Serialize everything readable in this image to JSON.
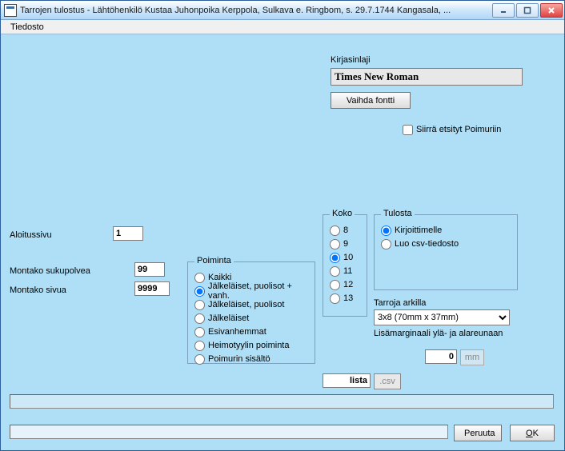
{
  "window": {
    "title": "Tarrojen tulostus - Lähtöhenkilö Kustaa Juhonpoika Kerppola, Sulkava e. Ringbom,  s. 29.7.1744 Kangasala, ..."
  },
  "menu": {
    "file": "Tiedosto"
  },
  "font": {
    "section_label": "Kirjasinlaji",
    "current": "Times New Roman",
    "change_btn": "Vaihda fontti"
  },
  "transfer_checkbox": "Siirrä etsityt Poimuriin",
  "left": {
    "start_page_label": "Aloitussivu",
    "start_page_value": "1",
    "generations_label": "Montako sukupolvea",
    "generations_value": "99",
    "pages_label": "Montako sivua",
    "pages_value": "9999"
  },
  "poiminta": {
    "legend": "Poiminta",
    "options": [
      "Kaikki",
      "Jälkeläiset, puolisot + vanh.",
      "Jälkeläiset, puolisot",
      "Jälkeläiset",
      "Esivanhemmat",
      "Heimotyylin poiminta",
      "Poimurin sisältö"
    ],
    "selected": 1
  },
  "koko": {
    "legend": "Koko",
    "options": [
      "8",
      "9",
      "10",
      "11",
      "12",
      "13"
    ],
    "selected": 2
  },
  "tulosta": {
    "legend": "Tulosta",
    "options": [
      "Kirjoittimelle",
      "Luo csv-tiedosto"
    ],
    "selected": 0
  },
  "sheet": {
    "label": "Tarroja arkilla",
    "selected": "3x8 (70mm x 37mm)"
  },
  "margin": {
    "label": "Lisämarginaali ylä- ja alareunaan",
    "value": "0",
    "unit": "mm"
  },
  "list_btn": "lista",
  "csv_btn": ".csv",
  "buttons": {
    "cancel": "Peruuta",
    "ok_prefix": "O",
    "ok_rest": "K"
  }
}
